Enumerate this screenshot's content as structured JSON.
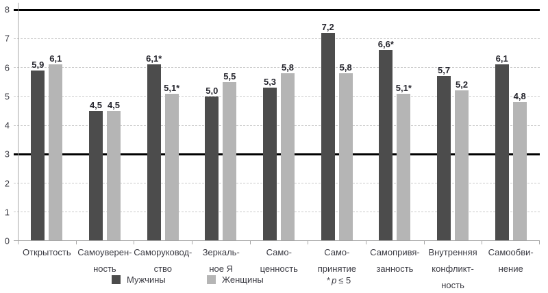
{
  "chart_data": {
    "type": "bar",
    "title": "",
    "xlabel": "",
    "ylabel": "",
    "ylim": [
      0,
      8
    ],
    "yticks": [
      0,
      1,
      2,
      3,
      4,
      5,
      6,
      7,
      8
    ],
    "emphasized_lines": [
      3,
      8
    ],
    "grid": "horizontal-dashed",
    "legend_position": "bottom",
    "categories": [
      "Открытость",
      "Самоуверенность",
      "Саморуководство",
      "Зеркальное Я",
      "Самоценность",
      "Самопринятие",
      "Самопривязанность",
      "Внутренняя конфликтность",
      "Самообвинение"
    ],
    "categories_lines": [
      [
        "Открытость"
      ],
      [
        "Самоуверен-",
        "ность"
      ],
      [
        "Саморуковод-",
        "ство"
      ],
      [
        "Зеркаль-",
        "ное Я"
      ],
      [
        "Само-",
        "ценность"
      ],
      [
        "Само-",
        "принятие"
      ],
      [
        "Самопривя-",
        "занность"
      ],
      [
        "Внутренняя",
        "конфликт-",
        "ность"
      ],
      [
        "Самообви-",
        "нение"
      ]
    ],
    "series": [
      {
        "name": "Мужчины",
        "color": "#4c4c4c",
        "values": [
          5.9,
          4.5,
          6.1,
          5.0,
          5.3,
          7.2,
          6.6,
          5.7,
          6.1
        ],
        "labels": [
          "5,9",
          "4,5",
          "6,1*",
          "5,0",
          "5,3",
          "7,2",
          "6,6*",
          "5,7",
          "6,1"
        ]
      },
      {
        "name": "Женщины",
        "color": "#b5b5b5",
        "values": [
          6.1,
          4.5,
          5.1,
          5.5,
          5.8,
          5.8,
          5.1,
          5.2,
          4.8
        ],
        "labels": [
          "6,1",
          "4,5",
          "5,1*",
          "5,5",
          "5,8",
          "5,8",
          "5,1*",
          "5,2",
          "4,8"
        ]
      }
    ],
    "footnote": {
      "marker": "*",
      "variable": "p",
      "relation_value": "≤ 5"
    }
  }
}
